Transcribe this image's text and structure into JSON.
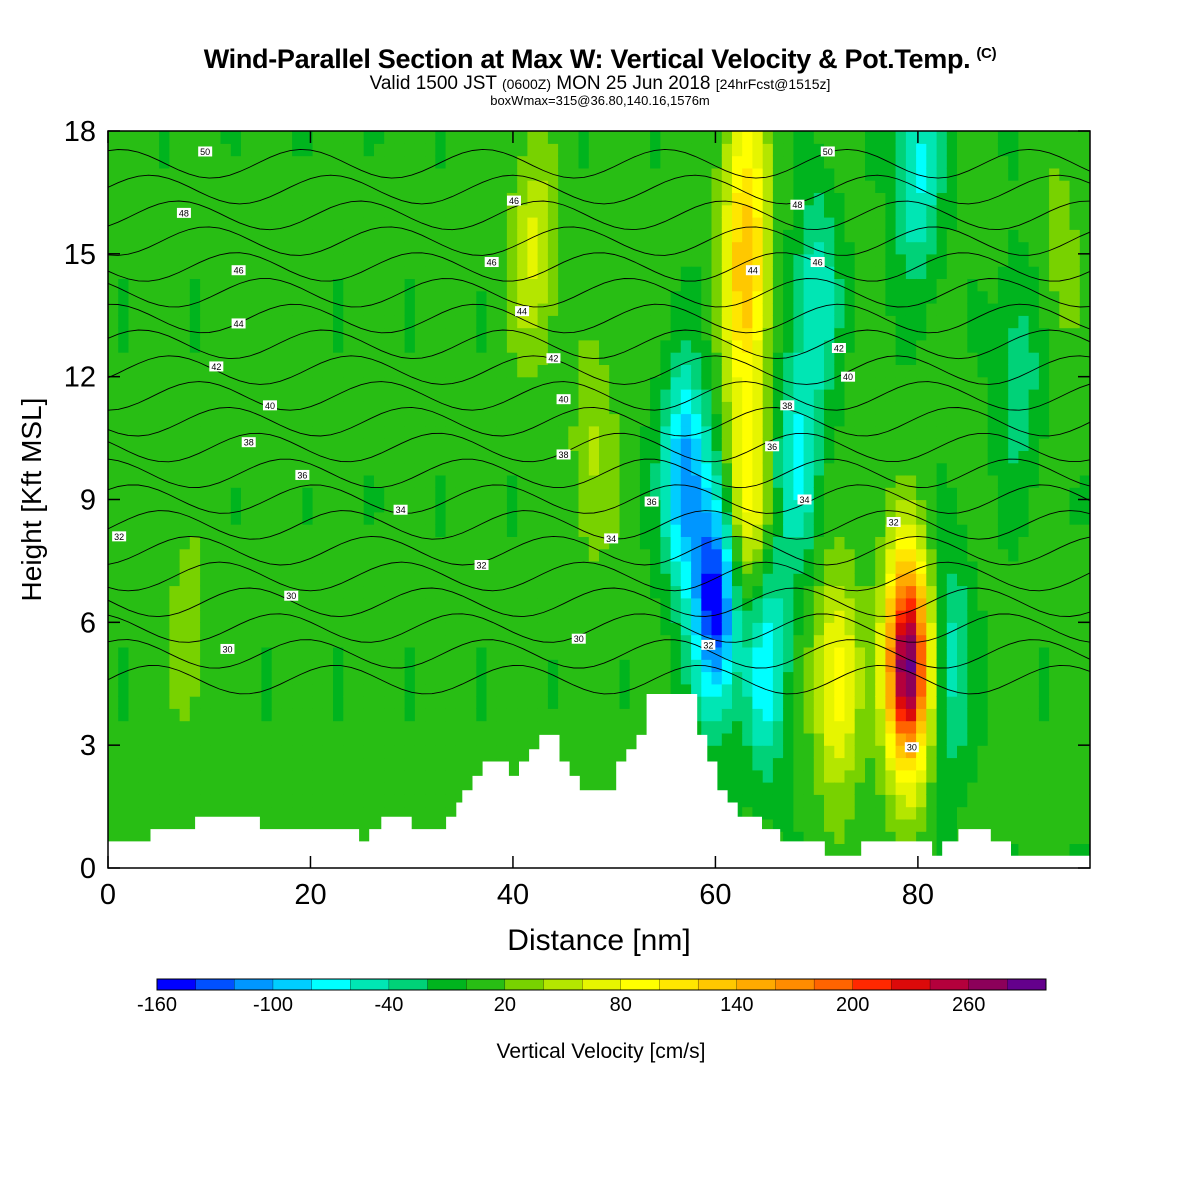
{
  "header": {
    "title": "Wind-Parallel Section at Max W: Vertical Velocity & Pot.Temp.",
    "copyright": "(C)",
    "valid_a": "Valid 1500 JST",
    "valid_b": "(0600Z)",
    "valid_c": "MON 25 Jun 2018",
    "valid_d": "[24hrFcst@1515z]",
    "boxmax": "boxWmax=315@36.80,140.16,1576m"
  },
  "chart_data": {
    "type": "heatmap",
    "xlabel": "Distance [nm]",
    "ylabel": "Height [Kft MSL]",
    "xlim": [
      0,
      97
    ],
    "ylim": [
      0,
      18
    ],
    "x_ticks": [
      0,
      20,
      40,
      60,
      80
    ],
    "y_ticks": [
      0,
      3,
      6,
      9,
      12,
      15,
      18
    ],
    "colorbar": {
      "label": "Vertical Velocity [cm/s]",
      "tick_labels": [
        "-160",
        "-100",
        "-40",
        "20",
        "80",
        "140",
        "200",
        "260"
      ],
      "tick_values": [
        -160,
        -100,
        -40,
        20,
        80,
        140,
        200,
        260
      ],
      "min": -160,
      "step": 20,
      "colors": [
        "#0000ff",
        "#0050ff",
        "#0096ff",
        "#00cdff",
        "#00ffff",
        "#00e6b4",
        "#00d278",
        "#00b41e",
        "#28be14",
        "#78d200",
        "#b4e600",
        "#e6f500",
        "#ffff00",
        "#ffe600",
        "#ffc800",
        "#ffaa00",
        "#ff8c00",
        "#ff6400",
        "#ff2800",
        "#dc0a0a",
        "#b4003c",
        "#8c005a",
        "#64008c"
      ]
    },
    "velocity_features": [
      {
        "x": 60,
        "z": 6.5,
        "w": -160
      },
      {
        "x": 57,
        "z": 9.5,
        "w": -120
      },
      {
        "x": 65,
        "z": 5,
        "w": -80
      },
      {
        "x": 68,
        "z": 10,
        "w": -70
      },
      {
        "x": 70,
        "z": 14,
        "w": -60
      },
      {
        "x": 80,
        "z": 17,
        "w": -70
      },
      {
        "x": 83,
        "z": 5,
        "w": -60
      },
      {
        "x": 90,
        "z": 12,
        "w": -40
      },
      {
        "x": 63,
        "z": 9,
        "w": 90
      },
      {
        "x": 63,
        "z": 14,
        "w": 110
      },
      {
        "x": 63,
        "z": 17,
        "w": 70
      },
      {
        "x": 72,
        "z": 4.5,
        "w": 90
      },
      {
        "x": 79,
        "z": 5,
        "w": 290
      },
      {
        "x": 42,
        "z": 15,
        "w": 60
      },
      {
        "x": 48,
        "z": 10,
        "w": 40
      },
      {
        "x": 8,
        "z": 5.5,
        "w": 30
      },
      {
        "x": 16,
        "z": 12,
        "w": 15
      },
      {
        "x": 94,
        "z": 15,
        "w": 25
      }
    ],
    "terrain": [
      {
        "x": 0,
        "z": 0.65
      },
      {
        "x": 4.2,
        "z": 0.65
      },
      {
        "x": 4.2,
        "z": 0.95
      },
      {
        "x": 8.6,
        "z": 0.95
      },
      {
        "x": 8.6,
        "z": 1.25
      },
      {
        "x": 15,
        "z": 1.25
      },
      {
        "x": 15,
        "z": 0.95
      },
      {
        "x": 24.8,
        "z": 0.95
      },
      {
        "x": 24.8,
        "z": 0.65
      },
      {
        "x": 25.8,
        "z": 0.65
      },
      {
        "x": 25.8,
        "z": 0.95
      },
      {
        "x": 27,
        "z": 0.95
      },
      {
        "x": 27,
        "z": 1.25
      },
      {
        "x": 30,
        "z": 1.25
      },
      {
        "x": 30,
        "z": 0.95
      },
      {
        "x": 33.4,
        "z": 0.95
      },
      {
        "x": 33.4,
        "z": 1.25
      },
      {
        "x": 34.4,
        "z": 1.25
      },
      {
        "x": 34.4,
        "z": 1.6
      },
      {
        "x": 35,
        "z": 1.6
      },
      {
        "x": 35,
        "z": 1.9
      },
      {
        "x": 36,
        "z": 1.9
      },
      {
        "x": 36,
        "z": 2.25
      },
      {
        "x": 37,
        "z": 2.25
      },
      {
        "x": 37,
        "z": 2.6
      },
      {
        "x": 39.6,
        "z": 2.6
      },
      {
        "x": 39.6,
        "z": 2.25
      },
      {
        "x": 40.6,
        "z": 2.25
      },
      {
        "x": 40.6,
        "z": 2.6
      },
      {
        "x": 41.6,
        "z": 2.6
      },
      {
        "x": 41.6,
        "z": 2.9
      },
      {
        "x": 42.6,
        "z": 2.9
      },
      {
        "x": 42.6,
        "z": 3.25
      },
      {
        "x": 44.6,
        "z": 3.25
      },
      {
        "x": 44.6,
        "z": 2.6
      },
      {
        "x": 45.6,
        "z": 2.6
      },
      {
        "x": 45.6,
        "z": 2.25
      },
      {
        "x": 46.6,
        "z": 2.25
      },
      {
        "x": 46.6,
        "z": 1.9
      },
      {
        "x": 50.2,
        "z": 1.9
      },
      {
        "x": 50.2,
        "z": 2.6
      },
      {
        "x": 51.2,
        "z": 2.6
      },
      {
        "x": 51.2,
        "z": 2.9
      },
      {
        "x": 52.2,
        "z": 2.9
      },
      {
        "x": 52.2,
        "z": 3.25
      },
      {
        "x": 53.2,
        "z": 3.25
      },
      {
        "x": 53.2,
        "z": 4.25
      },
      {
        "x": 58.2,
        "z": 4.25
      },
      {
        "x": 58.2,
        "z": 3.25
      },
      {
        "x": 59.2,
        "z": 3.25
      },
      {
        "x": 59.2,
        "z": 2.6
      },
      {
        "x": 60.2,
        "z": 2.6
      },
      {
        "x": 60.2,
        "z": 1.9
      },
      {
        "x": 61.2,
        "z": 1.9
      },
      {
        "x": 61.2,
        "z": 1.6
      },
      {
        "x": 62.2,
        "z": 1.6
      },
      {
        "x": 62.2,
        "z": 1.25
      },
      {
        "x": 64.6,
        "z": 1.25
      },
      {
        "x": 64.6,
        "z": 0.95
      },
      {
        "x": 66.4,
        "z": 0.95
      },
      {
        "x": 66.4,
        "z": 0.65
      },
      {
        "x": 70.8,
        "z": 0.65
      },
      {
        "x": 70.8,
        "z": 0.3
      },
      {
        "x": 74.4,
        "z": 0.3
      },
      {
        "x": 74.4,
        "z": 0.65
      },
      {
        "x": 81.4,
        "z": 0.65
      },
      {
        "x": 81.4,
        "z": 0.3
      },
      {
        "x": 82.4,
        "z": 0.3
      },
      {
        "x": 82.4,
        "z": 0.65
      },
      {
        "x": 84,
        "z": 0.65
      },
      {
        "x": 84,
        "z": 0.95
      },
      {
        "x": 87.2,
        "z": 0.95
      },
      {
        "x": 87.2,
        "z": 0.65
      },
      {
        "x": 89.2,
        "z": 0.65
      },
      {
        "x": 89.2,
        "z": 0.3
      },
      {
        "x": 97,
        "z": 0.3
      }
    ],
    "theta_contours": {
      "levels_c": [
        30,
        31,
        32,
        33,
        34,
        35,
        36,
        37,
        38,
        39,
        40,
        41,
        42,
        43,
        44,
        45,
        46,
        47,
        48,
        49,
        50
      ],
      "labels": [
        {
          "text": "50",
          "x": 9.6,
          "z": 17.5
        },
        {
          "text": "48",
          "x": 7.5,
          "z": 16.0
        },
        {
          "text": "46",
          "x": 12.9,
          "z": 14.6
        },
        {
          "text": "44",
          "x": 12.9,
          "z": 13.3
        },
        {
          "text": "42",
          "x": 10.7,
          "z": 12.25
        },
        {
          "text": "40",
          "x": 16.0,
          "z": 11.3
        },
        {
          "text": "38",
          "x": 13.9,
          "z": 10.4
        },
        {
          "text": "36",
          "x": 19.2,
          "z": 9.6
        },
        {
          "text": "34",
          "x": 28.9,
          "z": 8.75
        },
        {
          "text": "32",
          "x": 1.1,
          "z": 8.1
        },
        {
          "text": "30",
          "x": 18.1,
          "z": 6.65
        },
        {
          "text": "30",
          "x": 11.8,
          "z": 5.35
        },
        {
          "text": "46",
          "x": 40.1,
          "z": 16.3
        },
        {
          "text": "46",
          "x": 37.9,
          "z": 14.8
        },
        {
          "text": "44",
          "x": 40.9,
          "z": 13.6
        },
        {
          "text": "42",
          "x": 44.0,
          "z": 12.45
        },
        {
          "text": "40",
          "x": 45.0,
          "z": 11.45
        },
        {
          "text": "38",
          "x": 45.0,
          "z": 10.1
        },
        {
          "text": "36",
          "x": 53.7,
          "z": 8.95
        },
        {
          "text": "34",
          "x": 49.7,
          "z": 8.05
        },
        {
          "text": "32",
          "x": 36.9,
          "z": 7.4
        },
        {
          "text": "30",
          "x": 46.5,
          "z": 5.6
        },
        {
          "text": "32",
          "x": 59.3,
          "z": 5.45
        },
        {
          "text": "50",
          "x": 71.1,
          "z": 17.5
        },
        {
          "text": "48",
          "x": 68.1,
          "z": 16.2
        },
        {
          "text": "46",
          "x": 70.1,
          "z": 14.8
        },
        {
          "text": "44",
          "x": 63.7,
          "z": 14.6
        },
        {
          "text": "42",
          "x": 72.2,
          "z": 12.7
        },
        {
          "text": "40",
          "x": 73.1,
          "z": 12.0
        },
        {
          "text": "38",
          "x": 67.1,
          "z": 11.3
        },
        {
          "text": "36",
          "x": 65.6,
          "z": 10.3
        },
        {
          "text": "34",
          "x": 68.8,
          "z": 9.0
        },
        {
          "text": "32",
          "x": 77.6,
          "z": 8.45
        },
        {
          "text": "30",
          "x": 79.4,
          "z": 2.95
        }
      ]
    }
  }
}
